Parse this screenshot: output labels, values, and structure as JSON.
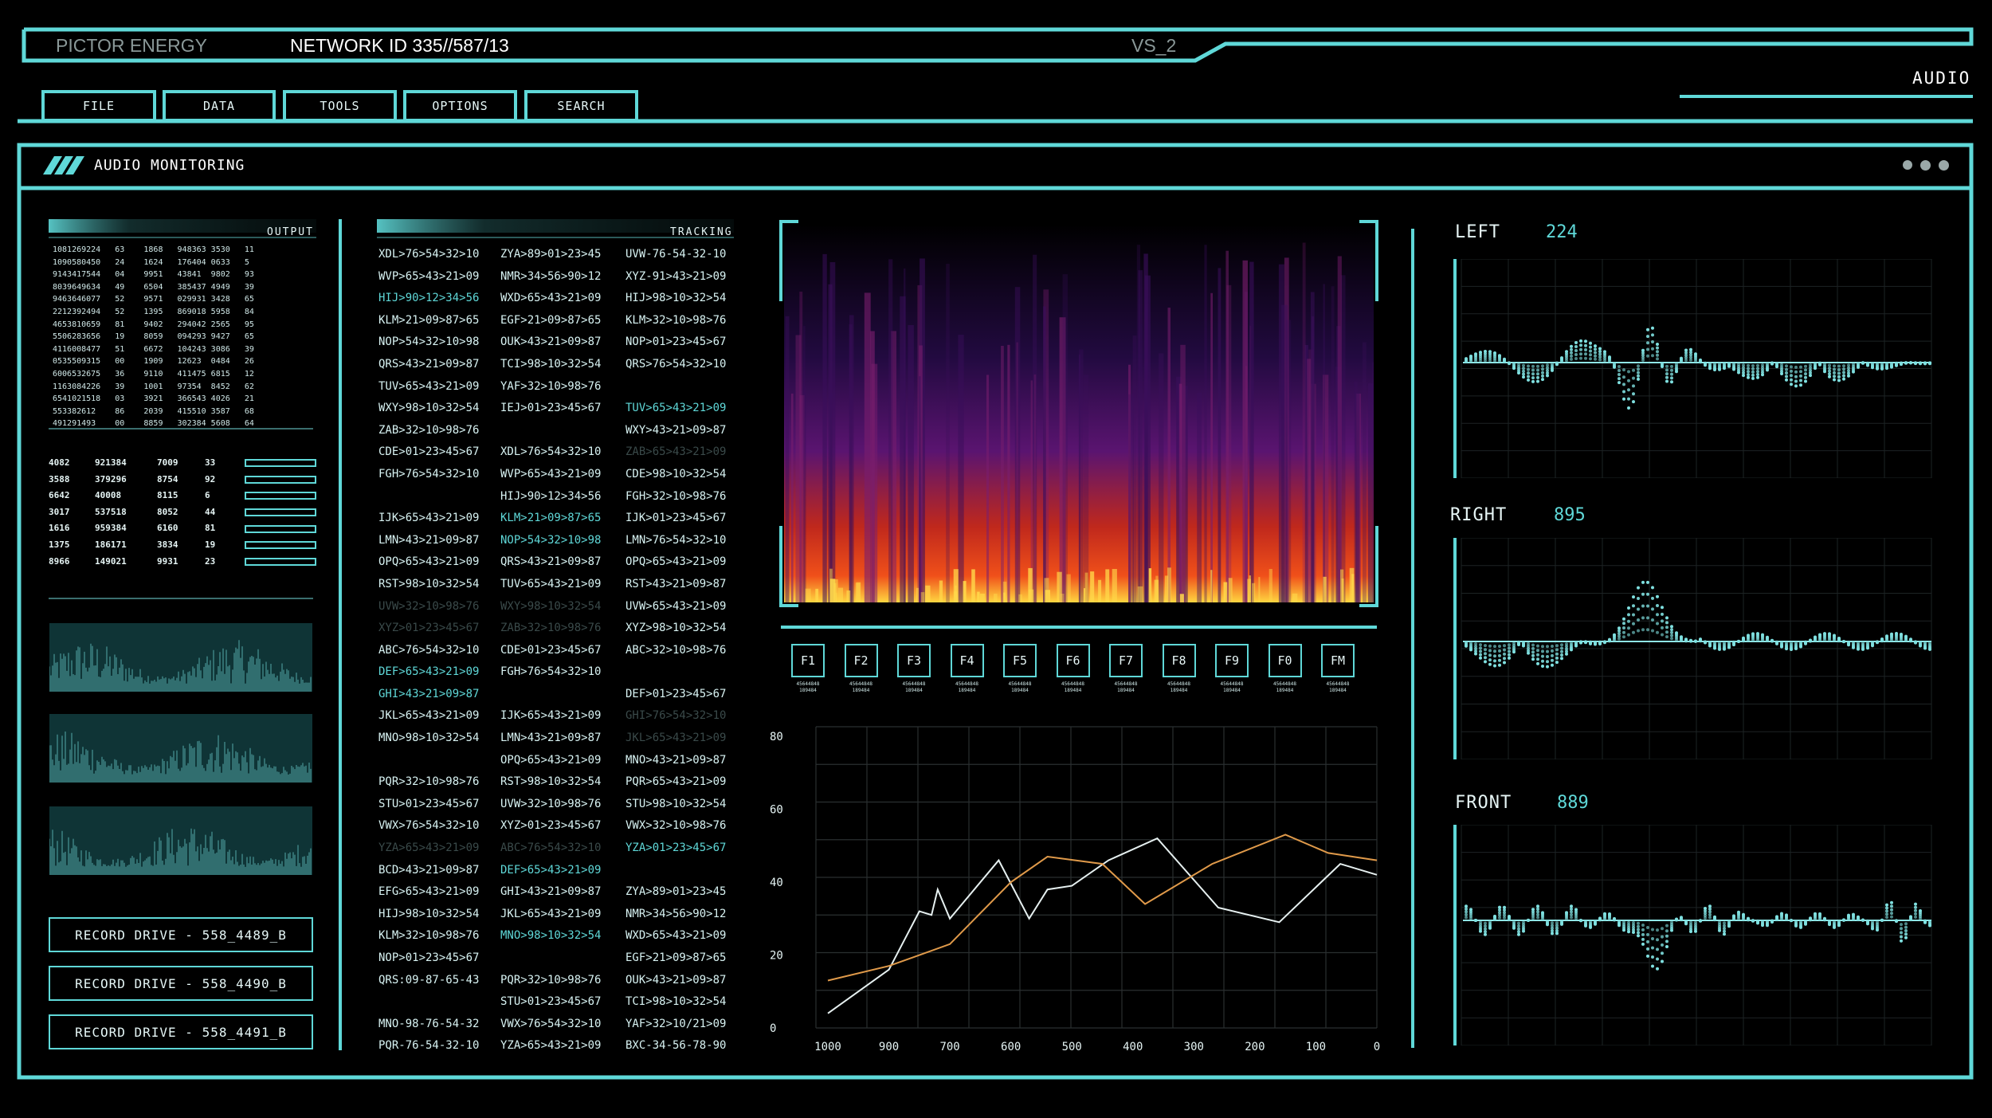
{
  "header": {
    "app_name": "PICTOR ENERGY",
    "network_id": "NETWORK ID 335//587/13",
    "version": "VS_2",
    "mode_label": "AUDIO"
  },
  "menu": [
    {
      "label": "FILE"
    },
    {
      "label": "DATA"
    },
    {
      "label": "TOOLS"
    },
    {
      "label": "OPTIONS"
    },
    {
      "label": "SEARCH"
    }
  ],
  "panel": {
    "title": "AUDIO MONITORING"
  },
  "output": {
    "title": "OUTPUT",
    "rows": [
      "1081269224   63    1868   948363 3530   11",
      "1090580450   24    1624   176404 0633   5",
      "9143417544   04    9951   43841  9802   93",
      "8039649634   49    6504   385437 4949   39",
      "9463646077   52    9571   029931 3428   65",
      "2212392494   52    1395   869018 5958   84",
      "4653810659   81    9402   294042 2565   95",
      "5506283656   19    8059   094293 9427   65",
      "4116008477   51    6672   104243 3086   39",
      "0535509315   00    1909   12623  0484   26",
      "6006532675   36    9110   411475 6815   12",
      "1163084226   39    1001   97354  8452   62",
      "6541021518   03    3921   366543 4026   21",
      "553382612    86    2039   415510 3587   68",
      "491291493    00    8859   302384 5608   64"
    ]
  },
  "stats": {
    "rows": [
      {
        "a": "4082",
        "b": "921384",
        "c": "7009",
        "d": "33"
      },
      {
        "a": "3588",
        "b": "379296",
        "c": "8754",
        "d": "92"
      },
      {
        "a": "6642",
        "b": "40008",
        "c": "8115",
        "d": "6"
      },
      {
        "a": "3017",
        "b": "537518",
        "c": "8052",
        "d": "44"
      },
      {
        "a": "1616",
        "b": "959384",
        "c": "6160",
        "d": "81"
      },
      {
        "a": "1375",
        "b": "186171",
        "c": "3834",
        "d": "19"
      },
      {
        "a": "8966",
        "b": "149021",
        "c": "9931",
        "d": "23"
      }
    ]
  },
  "records": [
    {
      "label": "RECORD DRIVE - 558_4489_B"
    },
    {
      "label": "RECORD DRIVE - 558_4490_B"
    },
    {
      "label": "RECORD DRIVE - 558_4491_B"
    }
  ],
  "tracking": {
    "title": "TRACKING",
    "col1": [
      {
        "t": "XDL>76>54>32>10"
      },
      {
        "t": "WVP>65>43>21>09"
      },
      {
        "t": "HIJ>90>12>34>56",
        "s": "hl"
      },
      {
        "t": "KLM>21>09>87>65"
      },
      {
        "t": "NOP>54>32>10>98"
      },
      {
        "t": "QRS>43>21>09>87"
      },
      {
        "t": "TUV>65>43>21>09"
      },
      {
        "t": "WXY>98>10>32>54"
      },
      {
        "t": "ZAB>32>10>98>76"
      },
      {
        "t": "CDE>01>23>45>67"
      },
      {
        "t": "FGH>76>54>32>10"
      },
      {
        "t": ""
      },
      {
        "t": "IJK>65>43>21>09"
      },
      {
        "t": "LMN>43>21>09>87"
      },
      {
        "t": "OPQ>65>43>21>09"
      },
      {
        "t": "RST>98>10>32>54"
      },
      {
        "t": "UVW>32>10>98>76",
        "s": "dim"
      },
      {
        "t": "XYZ>01>23>45>67",
        "s": "dim"
      },
      {
        "t": "ABC>76>54>32>10"
      },
      {
        "t": "DEF>65>43>21>09",
        "s": "hl"
      },
      {
        "t": "GHI>43>21>09>87",
        "s": "hl"
      },
      {
        "t": "JKL>65>43>21>09"
      },
      {
        "t": "MNO>98>10>32>54"
      },
      {
        "t": ""
      },
      {
        "t": "PQR>32>10>98>76"
      },
      {
        "t": "STU>01>23>45>67"
      },
      {
        "t": "VWX>76>54>32>10"
      },
      {
        "t": "YZA>65>43>21>09",
        "s": "dim"
      },
      {
        "t": "BCD>43>21>09>87"
      },
      {
        "t": "EFG>65>43>21>09"
      },
      {
        "t": "HIJ>98>10>32>54"
      },
      {
        "t": "KLM>32>10>98>76"
      },
      {
        "t": "NOP>01>23>45>67"
      },
      {
        "t": "QRS:09-87-65-43"
      },
      {
        "t": ""
      },
      {
        "t": "MNO-98-76-54-32"
      },
      {
        "t": "PQR-76-54-32-10"
      }
    ],
    "col2": [
      {
        "t": "ZYA>89>01>23>45"
      },
      {
        "t": "NMR>34>56>90>12"
      },
      {
        "t": "WXD>65>43>21>09"
      },
      {
        "t": "EGF>21>09>87>65"
      },
      {
        "t": "OUK>43>21>09>87"
      },
      {
        "t": "TCI>98>10>32>54"
      },
      {
        "t": "YAF>32>10>98>76"
      },
      {
        "t": "IEJ>01>23>45>67"
      },
      {
        "t": ""
      },
      {
        "t": "XDL>76>54>32>10"
      },
      {
        "t": "WVP>65>43>21>09"
      },
      {
        "t": "HIJ>90>12>34>56"
      },
      {
        "t": "KLM>21>09>87>65",
        "s": "hl"
      },
      {
        "t": "NOP>54>32>10>98",
        "s": "hl"
      },
      {
        "t": "QRS>43>21>09>87"
      },
      {
        "t": "TUV>65>43>21>09"
      },
      {
        "t": "WXY>98>10>32>54",
        "s": "dim"
      },
      {
        "t": "ZAB>32>10>98>76",
        "s": "dim"
      },
      {
        "t": "CDE>01>23>45>67"
      },
      {
        "t": "FGH>76>54>32>10"
      },
      {
        "t": ""
      },
      {
        "t": "IJK>65>43>21>09"
      },
      {
        "t": "LMN>43>21>09>87"
      },
      {
        "t": "OPQ>65>43>21>09"
      },
      {
        "t": "RST>98>10>32>54"
      },
      {
        "t": "UVW>32>10>98>76"
      },
      {
        "t": "XYZ>01>23>45>67"
      },
      {
        "t": "ABC>76>54>32>10",
        "s": "dim"
      },
      {
        "t": "DEF>65>43>21>09",
        "s": "hl"
      },
      {
        "t": "GHI>43>21>09>87"
      },
      {
        "t": "JKL>65>43>21>09"
      },
      {
        "t": "MNO>98>10>32>54",
        "s": "hl"
      },
      {
        "t": ""
      },
      {
        "t": "PQR>32>10>98>76"
      },
      {
        "t": "STU>01>23>45>67"
      },
      {
        "t": "VWX>76>54>32>10"
      },
      {
        "t": "YZA>65>43>21>09"
      }
    ],
    "col3": [
      {
        "t": "UVW-76-54-32-10"
      },
      {
        "t": "XYZ-91>43>21>09"
      },
      {
        "t": "HIJ>98>10>32>54"
      },
      {
        "t": "KLM>32>10>98>76"
      },
      {
        "t": "NOP>01>23>45>67"
      },
      {
        "t": "QRS>76>54>32>10"
      },
      {
        "t": ""
      },
      {
        "t": "TUV>65>43>21>09",
        "s": "hl"
      },
      {
        "t": "WXY>43>21>09>87"
      },
      {
        "t": "ZAB>65>43>21>09",
        "s": "dim"
      },
      {
        "t": "CDE>98>10>32>54"
      },
      {
        "t": "FGH>32>10>98>76"
      },
      {
        "t": "IJK>01>23>45>67"
      },
      {
        "t": "LMN>76>54>32>10"
      },
      {
        "t": "OPQ>65>43>21>09"
      },
      {
        "t": "RST>43>21>09>87"
      },
      {
        "t": "UVW>65>43>21>09"
      },
      {
        "t": "XYZ>98>10>32>54"
      },
      {
        "t": "ABC>32>10>98>76"
      },
      {
        "t": ""
      },
      {
        "t": "DEF>01>23>45>67"
      },
      {
        "t": "GHI>76>54>32>10",
        "s": "dim"
      },
      {
        "t": "JKL>65>43>21>09",
        "s": "dim"
      },
      {
        "t": "MNO>43>21>09>87"
      },
      {
        "t": "PQR>65>43>21>09"
      },
      {
        "t": "STU>98>10>32>54"
      },
      {
        "t": "VWX>32>10>98>76"
      },
      {
        "t": "YZA>01>23>45>67",
        "s": "hl"
      },
      {
        "t": ""
      },
      {
        "t": "ZYA>89>01>23>45"
      },
      {
        "t": "NMR>34>56>90>12"
      },
      {
        "t": "WXD>65>43>21>09"
      },
      {
        "t": "EGF>21>09>87>65"
      },
      {
        "t": "OUK>43>21>09>87"
      },
      {
        "t": "TCI>98>10>32>54"
      },
      {
        "t": "YAF>32>10/21>09"
      },
      {
        "t": "BXC-34-56-78-90"
      }
    ]
  },
  "filters": [
    {
      "label": "F1",
      "sub": "45644848\n189484"
    },
    {
      "label": "F2",
      "sub": "45644848\n189484"
    },
    {
      "label": "F3",
      "sub": "45644848\n189484"
    },
    {
      "label": "F4",
      "sub": "45644848\n189484"
    },
    {
      "label": "F5",
      "sub": "45644848\n189484"
    },
    {
      "label": "F6",
      "sub": "45644848\n189484"
    },
    {
      "label": "F7",
      "sub": "45644848\n189484"
    },
    {
      "label": "F8",
      "sub": "45644848\n189484"
    },
    {
      "label": "F9",
      "sub": "45644848\n189484"
    },
    {
      "label": "F0",
      "sub": "45644848\n189484"
    },
    {
      "label": "FM",
      "sub": "45644848\n189484"
    }
  ],
  "chart_data": {
    "type": "line",
    "x_ticks": [
      "1000",
      "900",
      "700",
      "600",
      "500",
      "400",
      "300",
      "200",
      "100",
      "0"
    ],
    "y_ticks": [
      "0",
      "20",
      "40",
      "60",
      "80"
    ],
    "ylim": [
      0,
      80
    ],
    "grid": true,
    "series": [
      {
        "color": "#e6f0f0",
        "points": [
          [
            1000,
            4
          ],
          [
            900,
            16
          ],
          [
            800,
            32
          ],
          [
            760,
            31
          ],
          [
            740,
            38
          ],
          [
            700,
            30
          ],
          [
            620,
            46
          ],
          [
            570,
            30
          ],
          [
            540,
            38
          ],
          [
            500,
            39
          ],
          [
            440,
            46
          ],
          [
            360,
            52
          ],
          [
            260,
            33
          ],
          [
            160,
            29
          ],
          [
            60,
            45
          ],
          [
            0,
            42
          ]
        ]
      },
      {
        "color": "#e09a4a",
        "points": [
          [
            1000,
            13
          ],
          [
            900,
            17
          ],
          [
            700,
            23
          ],
          [
            600,
            40
          ],
          [
            540,
            47
          ],
          [
            450,
            45
          ],
          [
            380,
            34
          ],
          [
            270,
            45
          ],
          [
            150,
            53
          ],
          [
            80,
            48
          ],
          [
            0,
            46
          ]
        ]
      }
    ]
  },
  "channels": [
    {
      "label": "LEFT",
      "value": "224"
    },
    {
      "label": "RIGHT",
      "value": "895"
    },
    {
      "label": "FRONT",
      "value": "889"
    }
  ],
  "colors": {
    "accent": "#5fd8d8",
    "background": "#000000",
    "chart_orange": "#e09a4a"
  }
}
